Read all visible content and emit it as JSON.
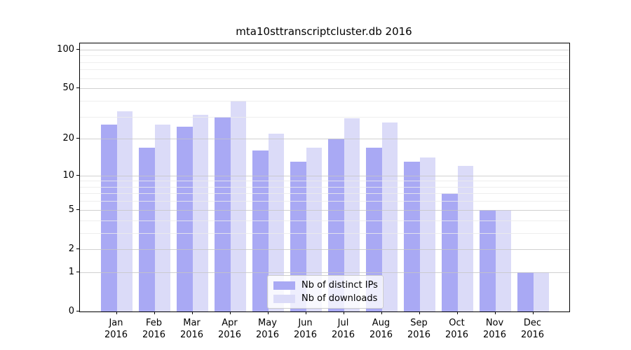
{
  "title": "mta10sttranscriptcluster.db 2016",
  "colors": {
    "ips_bar": "#a9a9f4",
    "downloads_bar": "#dbdbf8",
    "major_gridline": "#c6c6c6",
    "minor_gridline": "#ebebeb",
    "spine": "#000000",
    "legend_border": "#cccccc",
    "legend_background": "rgba(255,255,255,0.8)"
  },
  "legend": {
    "items": [
      {
        "label": "Nb of distinct IPs",
        "color_key": "ips_bar"
      },
      {
        "label": "Nb of downloads",
        "color_key": "downloads_bar"
      }
    ]
  },
  "y_axis": {
    "tick_values": [
      0,
      1,
      2,
      5,
      10,
      20,
      50,
      100
    ],
    "tick_labels": [
      "0",
      "1",
      "2",
      "5",
      "10",
      "20",
      "50",
      "100"
    ],
    "minor_gridline_values": [
      3,
      4,
      6,
      7,
      8,
      9,
      30,
      40,
      60,
      70,
      80,
      90
    ],
    "major_gridline_values": [
      1,
      2,
      5,
      10,
      20,
      50,
      100
    ],
    "scale": "log10(1+x)",
    "max_log_units": 2.052
  },
  "x_axis": {
    "months": [
      "Jan",
      "Feb",
      "Mar",
      "Apr",
      "May",
      "Jun",
      "Jul",
      "Aug",
      "Sep",
      "Oct",
      "Nov",
      "Dec"
    ],
    "year": "2016"
  },
  "chart_data": {
    "type": "bar",
    "title": "mta10sttranscriptcluster.db 2016",
    "categories": [
      "Jan 2016",
      "Feb 2016",
      "Mar 2016",
      "Apr 2016",
      "May 2016",
      "Jun 2016",
      "Jul 2016",
      "Aug 2016",
      "Sep 2016",
      "Oct 2016",
      "Nov 2016",
      "Dec 2016"
    ],
    "series": [
      {
        "name": "Nb of distinct IPs",
        "color": "#a9a9f4",
        "values": [
          26,
          17,
          25,
          30,
          16,
          13,
          20,
          17,
          13,
          7,
          5,
          1
        ]
      },
      {
        "name": "Nb of downloads",
        "color": "#dbdbf8",
        "values": [
          33,
          26,
          31,
          40,
          22,
          17,
          29,
          27,
          14,
          12,
          5,
          1
        ]
      }
    ],
    "xlabel": "",
    "ylabel": "",
    "y_scale": "log10(1+x)",
    "y_ticks": [
      0,
      1,
      2,
      5,
      10,
      20,
      50,
      100
    ],
    "ylim_log_units": [
      0,
      2.052
    ],
    "grid": true,
    "grid_above_bars": true,
    "legend_position": "lower center"
  }
}
